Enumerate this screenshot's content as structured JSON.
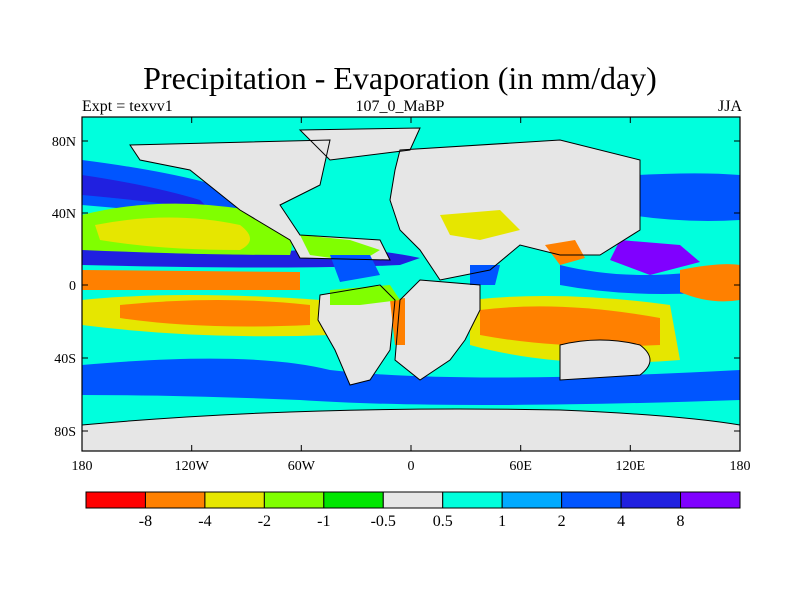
{
  "title": "Precipitation - Evaporation (in mm/day)",
  "left_label": "Expt = texvv1",
  "center_label": "107_0_MaBP",
  "right_label": "JJA",
  "lat_ticks": [
    "80N",
    "40N",
    "0",
    "40S",
    "80S"
  ],
  "lon_ticks": [
    "180",
    "120W",
    "60W",
    "0",
    "60E",
    "120E",
    "180"
  ],
  "colorbar": {
    "colors": [
      "#ff0000",
      "#ff8000",
      "#e6e600",
      "#80ff00",
      "#00e600",
      "#e6e6e6",
      "#00ffdd",
      "#00aaff",
      "#0055ff",
      "#2020e0",
      "#8000ff"
    ],
    "labels": [
      "-8",
      "-4",
      "-2",
      "-1",
      "-0.5",
      "0.5",
      "1",
      "2",
      "4",
      "8"
    ]
  },
  "chart_data": {
    "type": "heatmap",
    "title": "Precipitation - Evaporation (in mm/day)",
    "xlim": [
      -180,
      180
    ],
    "ylim": [
      -90,
      90
    ],
    "levels": [
      -8,
      -4,
      -2,
      -1,
      -0.5,
      0.5,
      1,
      2,
      4,
      8
    ]
  }
}
